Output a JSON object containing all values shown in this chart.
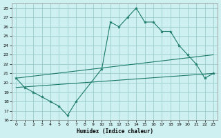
{
  "xlabel": "Humidex (Indice chaleur)",
  "bg_color": "#cff0f0",
  "grid_color": "#99cccc",
  "line_color": "#1a7a6a",
  "xlim": [
    -0.5,
    23.5
  ],
  "ylim": [
    16,
    28.5
  ],
  "yticks": [
    16,
    17,
    18,
    19,
    20,
    21,
    22,
    23,
    24,
    25,
    26,
    27,
    28
  ],
  "xticks": [
    0,
    1,
    2,
    3,
    4,
    5,
    6,
    7,
    8,
    9,
    10,
    11,
    12,
    13,
    14,
    15,
    16,
    17,
    18,
    19,
    20,
    21,
    22,
    23
  ],
  "line1_x": [
    0,
    1,
    2,
    3,
    4,
    5,
    6,
    7,
    10,
    11,
    12,
    13,
    14,
    15,
    16,
    17,
    18,
    19,
    20,
    21,
    22,
    23
  ],
  "line1_y": [
    20.5,
    19.5,
    19.0,
    18.5,
    18.0,
    17.5,
    16.5,
    18.0,
    21.5,
    26.5,
    26.0,
    27.0,
    28.0,
    26.5,
    26.5,
    25.5,
    25.5,
    24.0,
    23.0,
    22.0,
    20.5,
    21.0
  ],
  "line2_x": [
    0,
    23
  ],
  "line2_y": [
    19.5,
    21.0
  ],
  "line3_x": [
    0,
    23
  ],
  "line3_y": [
    20.5,
    23.0
  ]
}
